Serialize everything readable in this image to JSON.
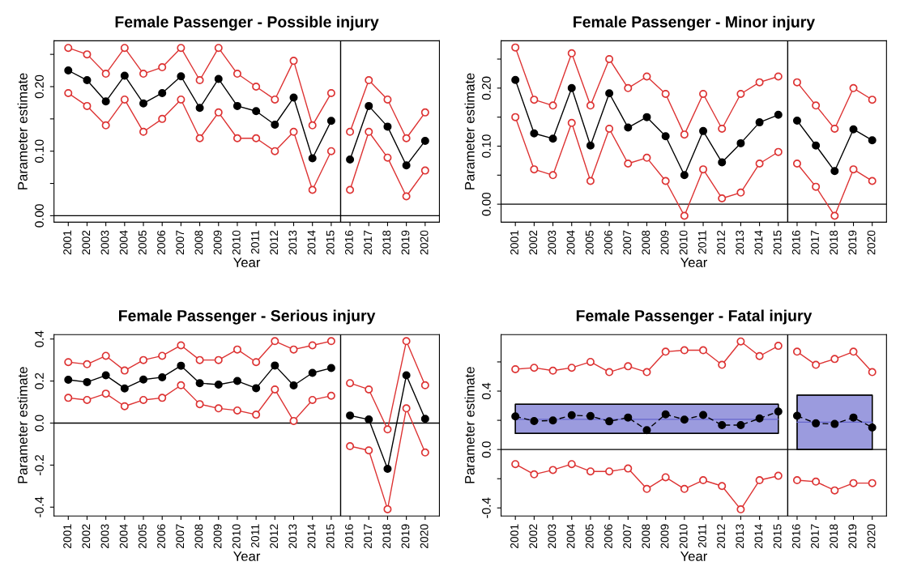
{
  "chart_data": [
    {
      "type": "line",
      "title": "Female Passenger - Possible injury",
      "xlabel": "Year",
      "ylabel": "Parameter estimate",
      "marker": "circle",
      "grid": false,
      "legend": false,
      "xlim": [
        2000.24,
        2020.76
      ],
      "xticks": [
        2001,
        2002,
        2003,
        2004,
        2005,
        2006,
        2007,
        2008,
        2009,
        2010,
        2011,
        2012,
        2013,
        2014,
        2015,
        2016,
        2017,
        2018,
        2019,
        2020
      ],
      "ylim": [
        -0.01,
        0.271
      ],
      "yticks": [
        {
          "value": 0.0,
          "label": "0.00"
        },
        {
          "value": 0.05,
          "label": null
        },
        {
          "value": 0.1,
          "label": "0.10"
        },
        {
          "value": 0.15,
          "label": null
        },
        {
          "value": 0.2,
          "label": "0.20"
        },
        {
          "value": 0.25,
          "label": null
        }
      ],
      "ref_lines": [
        {
          "axis": "y",
          "value": 0,
          "color": "#000000"
        },
        {
          "axis": "x",
          "value": 2015.5,
          "color": "#000000"
        }
      ],
      "series": [
        {
          "color": "#dd3333",
          "x": [
            2001,
            2002,
            2003,
            2004,
            2005,
            2006,
            2007,
            2008,
            2009,
            2010,
            2011,
            2012,
            2013,
            2014,
            2015
          ],
          "values": [
            0.26,
            0.25,
            0.22,
            0.26,
            0.22,
            0.23,
            0.26,
            0.21,
            0.26,
            0.22,
            0.2,
            0.18,
            0.24,
            0.14,
            0.19
          ]
        },
        {
          "color": "#dd3333",
          "x": [
            2016,
            2017,
            2018,
            2019,
            2020
          ],
          "values": [
            0.13,
            0.21,
            0.18,
            0.12,
            0.16
          ]
        },
        {
          "color": "#dd3333",
          "x": [
            2001,
            2002,
            2003,
            2004,
            2005,
            2006,
            2007,
            2008,
            2009,
            2010,
            2011,
            2012,
            2013,
            2014,
            2015
          ],
          "values": [
            0.19,
            0.17,
            0.14,
            0.18,
            0.13,
            0.15,
            0.18,
            0.12,
            0.16,
            0.12,
            0.12,
            0.1,
            0.13,
            0.04,
            0.1
          ]
        },
        {
          "color": "#dd3333",
          "x": [
            2016,
            2017,
            2018,
            2019,
            2020
          ],
          "values": [
            0.04,
            0.13,
            0.09,
            0.03,
            0.07
          ]
        },
        {
          "color": "#000000",
          "x": [
            2001,
            2002,
            2003,
            2004,
            2005,
            2006,
            2007,
            2008,
            2009,
            2010,
            2011,
            2012,
            2013,
            2014,
            2015
          ],
          "values": [
            0.225,
            0.21,
            0.177,
            0.217,
            0.174,
            0.19,
            0.216,
            0.167,
            0.212,
            0.17,
            0.162,
            0.141,
            0.183,
            0.089,
            0.147
          ]
        },
        {
          "color": "#000000",
          "x": [
            2016,
            2017,
            2018,
            2019,
            2020
          ],
          "values": [
            0.087,
            0.17,
            0.138,
            0.078,
            0.116
          ]
        }
      ]
    },
    {
      "type": "line",
      "title": "Female Passenger - Minor injury",
      "xlabel": "Year",
      "ylabel": "Parameter estimate",
      "marker": "circle",
      "grid": false,
      "legend": false,
      "xlim": [
        2000.24,
        2020.76
      ],
      "xticks": [
        2001,
        2002,
        2003,
        2004,
        2005,
        2006,
        2007,
        2008,
        2009,
        2010,
        2011,
        2012,
        2013,
        2014,
        2015,
        2016,
        2017,
        2018,
        2019,
        2020
      ],
      "ylim": [
        -0.031,
        0.2815
      ],
      "yticks": [
        {
          "value": 0.0,
          "label": "0.00"
        },
        {
          "value": 0.05,
          "label": null
        },
        {
          "value": 0.1,
          "label": "0.10"
        },
        {
          "value": 0.15,
          "label": null
        },
        {
          "value": 0.2,
          "label": "0.20"
        },
        {
          "value": 0.25,
          "label": null
        }
      ],
      "ref_lines": [
        {
          "axis": "y",
          "value": 0,
          "color": "#000000"
        },
        {
          "axis": "x",
          "value": 2015.5,
          "color": "#000000"
        }
      ],
      "series": [
        {
          "color": "#dd3333",
          "x": [
            2001,
            2002,
            2003,
            2004,
            2005,
            2006,
            2007,
            2008,
            2009,
            2010,
            2011,
            2012,
            2013,
            2014,
            2015
          ],
          "values": [
            0.27,
            0.18,
            0.17,
            0.26,
            0.17,
            0.25,
            0.2,
            0.22,
            0.19,
            0.12,
            0.19,
            0.13,
            0.19,
            0.21,
            0.22
          ]
        },
        {
          "color": "#dd3333",
          "x": [
            2016,
            2017,
            2018,
            2019,
            2020
          ],
          "values": [
            0.21,
            0.17,
            0.13,
            0.2,
            0.18
          ]
        },
        {
          "color": "#dd3333",
          "x": [
            2001,
            2002,
            2003,
            2004,
            2005,
            2006,
            2007,
            2008,
            2009,
            2010,
            2011,
            2012,
            2013,
            2014,
            2015
          ],
          "values": [
            0.15,
            0.06,
            0.05,
            0.14,
            0.04,
            0.13,
            0.07,
            0.08,
            0.04,
            -0.02,
            0.06,
            0.01,
            0.02,
            0.07,
            0.09
          ]
        },
        {
          "color": "#dd3333",
          "x": [
            2016,
            2017,
            2018,
            2019,
            2020
          ],
          "values": [
            0.07,
            0.03,
            -0.02,
            0.06,
            0.04
          ]
        },
        {
          "color": "#000000",
          "x": [
            2001,
            2002,
            2003,
            2004,
            2005,
            2006,
            2007,
            2008,
            2009,
            2010,
            2011,
            2012,
            2013,
            2014,
            2015
          ],
          "values": [
            0.214,
            0.122,
            0.113,
            0.2,
            0.101,
            0.191,
            0.132,
            0.15,
            0.117,
            0.05,
            0.126,
            0.072,
            0.105,
            0.141,
            0.154
          ]
        },
        {
          "color": "#000000",
          "x": [
            2016,
            2017,
            2018,
            2019,
            2020
          ],
          "values": [
            0.144,
            0.101,
            0.057,
            0.129,
            0.11
          ]
        }
      ]
    },
    {
      "type": "line",
      "title": "Female Passenger - Serious injury",
      "xlabel": "Year",
      "ylabel": "Parameter estimate",
      "marker": "circle",
      "grid": false,
      "legend": false,
      "xlim": [
        2000.24,
        2020.76
      ],
      "xticks": [
        2001,
        2002,
        2003,
        2004,
        2005,
        2006,
        2007,
        2008,
        2009,
        2010,
        2011,
        2012,
        2013,
        2014,
        2015,
        2016,
        2017,
        2018,
        2019,
        2020
      ],
      "ylim": [
        -0.442,
        0.421
      ],
      "yticks": [
        {
          "value": -0.4,
          "label": "-0.4"
        },
        {
          "value": -0.2,
          "label": "-0.2"
        },
        {
          "value": 0.0,
          "label": "0.0"
        },
        {
          "value": 0.2,
          "label": "0.2"
        },
        {
          "value": 0.4,
          "label": "0.4"
        }
      ],
      "ref_lines": [
        {
          "axis": "y",
          "value": 0,
          "color": "#000000"
        },
        {
          "axis": "x",
          "value": 2015.5,
          "color": "#000000"
        }
      ],
      "series": [
        {
          "color": "#dd3333",
          "x": [
            2001,
            2002,
            2003,
            2004,
            2005,
            2006,
            2007,
            2008,
            2009,
            2010,
            2011,
            2012,
            2013,
            2014,
            2015
          ],
          "values": [
            0.29,
            0.28,
            0.32,
            0.25,
            0.3,
            0.32,
            0.37,
            0.3,
            0.3,
            0.35,
            0.29,
            0.39,
            0.35,
            0.37,
            0.39
          ]
        },
        {
          "color": "#dd3333",
          "x": [
            2016,
            2017,
            2018,
            2019,
            2020
          ],
          "values": [
            0.19,
            0.16,
            -0.03,
            0.39,
            0.18
          ]
        },
        {
          "color": "#dd3333",
          "x": [
            2001,
            2002,
            2003,
            2004,
            2005,
            2006,
            2007,
            2008,
            2009,
            2010,
            2011,
            2012,
            2013,
            2014,
            2015
          ],
          "values": [
            0.12,
            0.11,
            0.14,
            0.08,
            0.11,
            0.12,
            0.18,
            0.09,
            0.07,
            0.06,
            0.04,
            0.16,
            0.01,
            0.11,
            0.13
          ]
        },
        {
          "color": "#dd3333",
          "x": [
            2016,
            2017,
            2018,
            2019,
            2020
          ],
          "values": [
            -0.11,
            -0.13,
            -0.41,
            0.07,
            -0.14
          ]
        },
        {
          "color": "#000000",
          "x": [
            2001,
            2002,
            2003,
            2004,
            2005,
            2006,
            2007,
            2008,
            2009,
            2010,
            2011,
            2012,
            2013,
            2014,
            2015
          ],
          "values": [
            0.206,
            0.195,
            0.227,
            0.165,
            0.207,
            0.218,
            0.273,
            0.19,
            0.183,
            0.2,
            0.166,
            0.274,
            0.179,
            0.239,
            0.262
          ]
        },
        {
          "color": "#000000",
          "x": [
            2016,
            2017,
            2018,
            2019,
            2020
          ],
          "values": [
            0.036,
            0.017,
            -0.218,
            0.227,
            0.02
          ]
        }
      ]
    },
    {
      "type": "line",
      "title": "Female Passenger - Fatal injury",
      "xlabel": "Year",
      "ylabel": "Parameter estimate",
      "marker": "circle",
      "grid": false,
      "legend": false,
      "xlim": [
        2000.24,
        2020.76
      ],
      "xticks": [
        2001,
        2002,
        2003,
        2004,
        2005,
        2006,
        2007,
        2008,
        2009,
        2010,
        2011,
        2012,
        2013,
        2014,
        2015,
        2016,
        2017,
        2018,
        2019,
        2020
      ],
      "ylim": [
        -0.455,
        0.787
      ],
      "yticks": [
        {
          "value": -0.4,
          "label": "-0.4"
        },
        {
          "value": -0.2,
          "label": null
        },
        {
          "value": 0.0,
          "label": "0.0"
        },
        {
          "value": 0.2,
          "label": null
        },
        {
          "value": 0.4,
          "label": "0.4"
        },
        {
          "value": 0.6,
          "label": null
        }
      ],
      "ref_lines": [
        {
          "axis": "y",
          "value": 0,
          "color": "#000000"
        },
        {
          "axis": "x",
          "value": 2015.5,
          "color": "#000000"
        }
      ],
      "series": [
        {
          "color": "#6666cc",
          "marker": "none",
          "x": [
            2001,
            2015
          ],
          "values": [
            0.207,
            0.207
          ],
          "lower": [
            0.11,
            0.11
          ],
          "upper": [
            0.31,
            0.31
          ]
        },
        {
          "color": "#6666cc",
          "marker": "none",
          "x": [
            2016,
            2020
          ],
          "values": [
            0.187,
            0.187
          ],
          "lower": [
            0.0,
            0.0
          ],
          "upper": [
            0.372,
            0.372
          ]
        },
        {
          "color": "#dd3333",
          "x": [
            2001,
            2002,
            2003,
            2004,
            2005,
            2006,
            2007,
            2008,
            2009,
            2010,
            2011,
            2012,
            2013,
            2014,
            2015
          ],
          "values": [
            0.55,
            0.56,
            0.54,
            0.56,
            0.6,
            0.53,
            0.57,
            0.53,
            0.67,
            0.68,
            0.68,
            0.58,
            0.74,
            0.64,
            0.71
          ]
        },
        {
          "color": "#dd3333",
          "x": [
            2016,
            2017,
            2018,
            2019,
            2020
          ],
          "values": [
            0.67,
            0.58,
            0.62,
            0.67,
            0.53
          ]
        },
        {
          "color": "#dd3333",
          "x": [
            2001,
            2002,
            2003,
            2004,
            2005,
            2006,
            2007,
            2008,
            2009,
            2010,
            2011,
            2012,
            2013,
            2014,
            2015
          ],
          "values": [
            -0.1,
            -0.17,
            -0.14,
            -0.1,
            -0.15,
            -0.15,
            -0.13,
            -0.27,
            -0.19,
            -0.27,
            -0.21,
            -0.25,
            -0.41,
            -0.21,
            -0.18
          ]
        },
        {
          "color": "#dd3333",
          "x": [
            2016,
            2017,
            2018,
            2019,
            2020
          ],
          "values": [
            -0.21,
            -0.22,
            -0.28,
            -0.23,
            -0.23
          ]
        },
        {
          "color": "#000000",
          "line_style": "dashed",
          "x": [
            2001,
            2002,
            2003,
            2004,
            2005,
            2006,
            2007,
            2008,
            2009,
            2010,
            2011,
            2012,
            2013,
            2014,
            2015
          ],
          "values": [
            0.227,
            0.195,
            0.199,
            0.235,
            0.229,
            0.193,
            0.219,
            0.133,
            0.241,
            0.205,
            0.237,
            0.167,
            0.167,
            0.213,
            0.26
          ]
        },
        {
          "color": "#000000",
          "line_style": "dashed",
          "x": [
            2016,
            2017,
            2018,
            2019,
            2020
          ],
          "values": [
            0.231,
            0.179,
            0.175,
            0.219,
            0.151
          ]
        }
      ]
    }
  ]
}
